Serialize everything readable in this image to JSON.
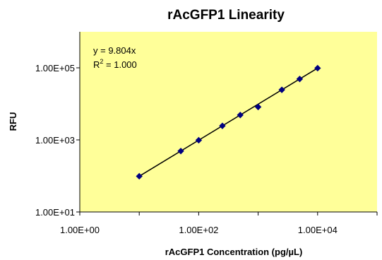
{
  "chart_data": {
    "type": "scatter",
    "title": "rAcGFP1 Linearity",
    "xlabel": "rAcGFP1 Concentration (pg/µL)",
    "ylabel": "RFU",
    "x_scale": "log10",
    "y_scale": "log10",
    "xlim": [
      1,
      100000
    ],
    "ylim": [
      10,
      1000000
    ],
    "x_tick_labels": [
      "1.00E+00",
      "1.00E+02",
      "1.00E+04"
    ],
    "y_tick_labels": [
      "1.00E+01",
      "1.00E+03",
      "1.00E+05"
    ],
    "x_tick_values": [
      1,
      100,
      10000
    ],
    "y_tick_values": [
      10,
      1000,
      100000
    ],
    "grid": false,
    "legend": "none",
    "plot_background": "#ffff99",
    "marker_color": "#000080",
    "line_color": "#000000",
    "trendline": {
      "type": "linear",
      "slope": 9.804,
      "intercept": 0
    },
    "annotations": {
      "equation": "y = 9.804x",
      "r_squared_prefix": "R",
      "r_squared_exp": "2",
      "r_squared_value": " = 1.000"
    },
    "series": [
      {
        "x": [
          10,
          50,
          100,
          250,
          500,
          1000,
          2500,
          5000,
          10000
        ],
        "y": [
          98,
          490,
          980,
          2450,
          4900,
          8200,
          24500,
          49000,
          98000
        ]
      }
    ]
  }
}
